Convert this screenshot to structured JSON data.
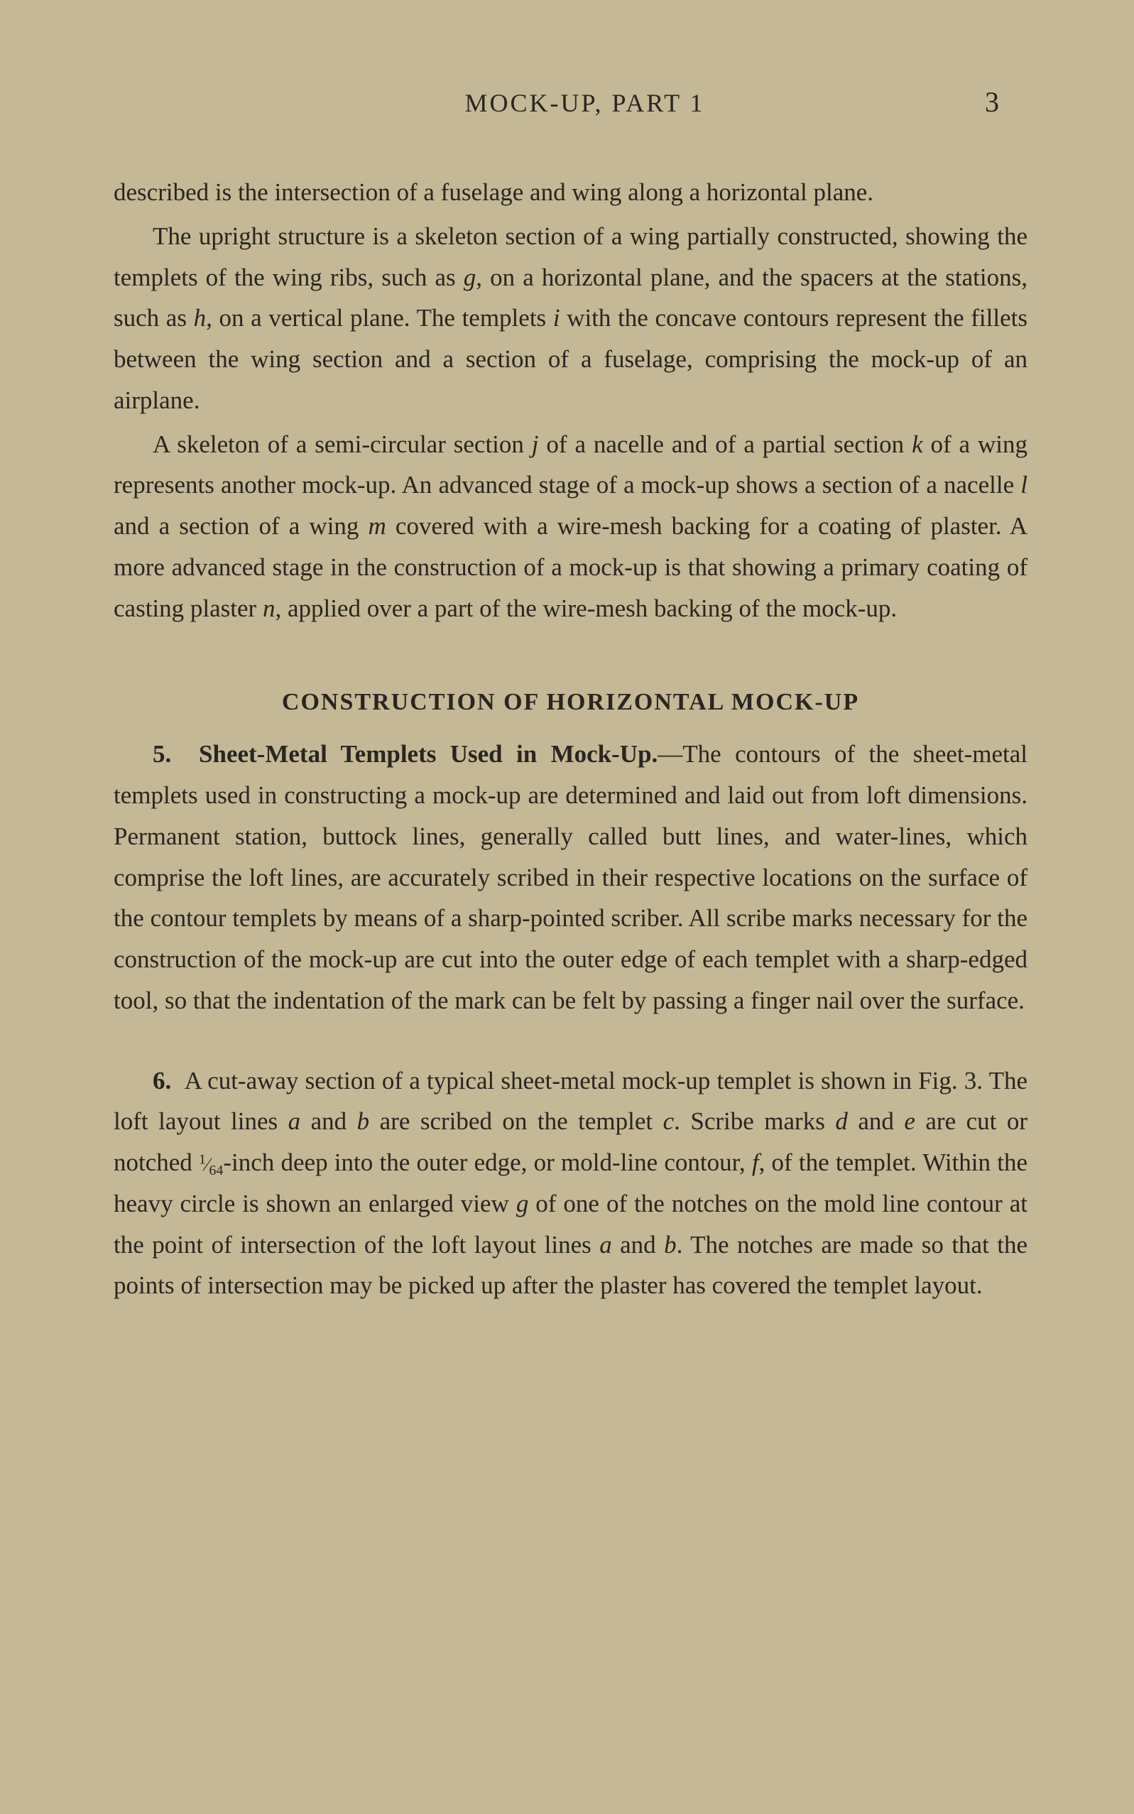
{
  "page": {
    "running_title": "MOCK-UP, PART 1",
    "page_number": "3",
    "background_color": "#c4b896",
    "text_color": "#2a2520",
    "body_fontsize": 35,
    "title_fontsize": 34,
    "header_fontsize": 36
  },
  "paragraphs": {
    "p1": "described is the intersection of a fuselage and wing along a horizontal plane.",
    "p2_pre": "The upright structure is a skeleton section of a wing partially constructed, showing the templets of the wing ribs, such as ",
    "p2_g": "g",
    "p2_mid1": ", on a horizontal plane, and the spacers at the stations, such as ",
    "p2_h": "h",
    "p2_mid2": ", on a vertical plane. The templets ",
    "p2_i": "i",
    "p2_post": " with the concave contours represent the fillets between the wing section and a section of a fuselage, comprising the mock-up of an airplane.",
    "p3_pre": "A skeleton of a semi-circular section ",
    "p3_j": "j",
    "p3_mid1": " of a nacelle and of a partial section ",
    "p3_k": "k",
    "p3_mid2": " of a wing represents another mock-up. An advanced stage of a mock-up shows a section of a nacelle ",
    "p3_l": "l",
    "p3_mid3": " and a section of a wing ",
    "p3_m": "m",
    "p3_mid4": " covered with a wire-mesh backing for a coating of plaster. A more advanced stage in the construction of a mock-up is that showing a primary coating of casting plaster ",
    "p3_n": "n",
    "p3_post": ", applied over a part of the wire-mesh backing of the mock-up."
  },
  "section": {
    "title": "CONSTRUCTION OF HORIZONTAL MOCK-UP",
    "s5_number": "5.",
    "s5_heading": "Sheet-Metal Templets Used in Mock-Up.",
    "s5_body": "—The contours of the sheet-metal templets used in constructing a mock-up are determined and laid out from loft dimensions. Permanent station, buttock lines, generally called butt lines, and water-lines, which comprise the loft lines, are accurately scribed in their respective locations on the surface of the contour templets by means of a sharp-pointed scriber. All scribe marks necessary for the construction of the mock-up are cut into the outer edge of each templet with a sharp-edged tool, so that the indentation of the mark can be felt by passing a finger nail over the surface.",
    "s6_number": "6.",
    "s6_pre": "A cut-away section of a typical sheet-metal mock-up templet is shown in Fig. 3. The loft layout lines ",
    "s6_a1": "a",
    "s6_and1": " and ",
    "s6_b1": "b",
    "s6_mid1": " are scribed on the templet ",
    "s6_c": "c",
    "s6_mid2": ". Scribe marks ",
    "s6_d": "d",
    "s6_and2": " and ",
    "s6_e": "e",
    "s6_mid3": " are cut or notched ",
    "s6_frac_num": "1",
    "s6_frac_den": "64",
    "s6_mid4": "-inch deep into the outer edge, or mold-line contour, ",
    "s6_f": "f",
    "s6_mid5": ", of the templet. Within the heavy circle is shown an enlarged view ",
    "s6_g": "g",
    "s6_mid6": " of one of the notches on the mold line contour at the point of intersection of the loft layout lines ",
    "s6_a2": "a",
    "s6_and3": " and ",
    "s6_b2": "b",
    "s6_post": ". The notches are made so that the points of intersection may be picked up after the plaster has covered the templet layout."
  }
}
